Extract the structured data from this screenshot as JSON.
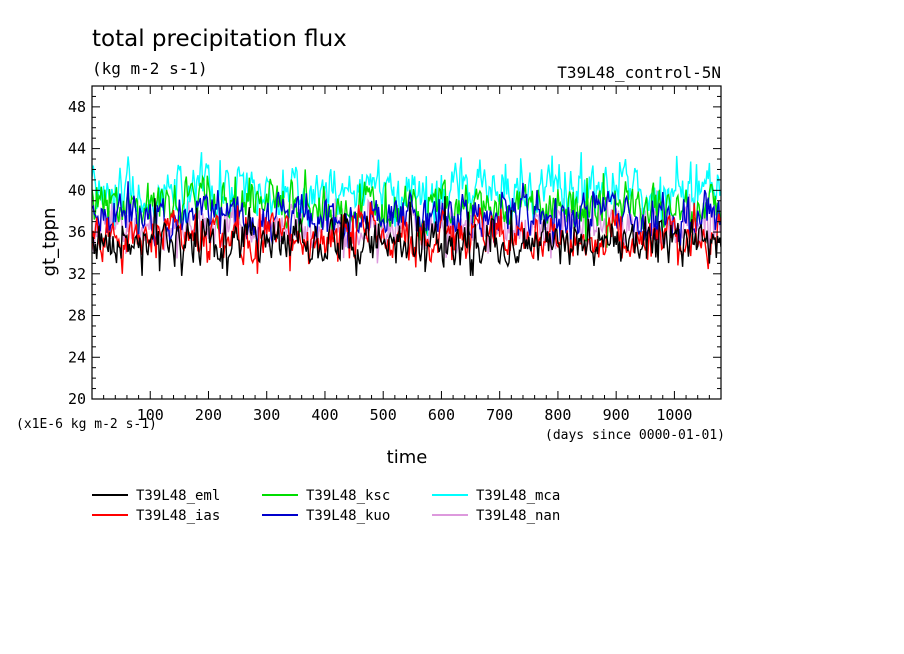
{
  "chart_data": {
    "type": "line",
    "title": "total precipitation flux",
    "units_label": "(kg m-2 s-1)",
    "run_label": "T39L48_control-5N",
    "ylabel": "gt_tppn",
    "xlabel": "time",
    "y_scale_note": "(x1E-6 kg m-2 s-1)",
    "x_unit_note": "(days since 0000-01-01)",
    "xlim": [
      0,
      1080
    ],
    "ylim": [
      20,
      50
    ],
    "xticks": [
      100,
      200,
      300,
      400,
      500,
      600,
      700,
      800,
      900,
      1000
    ],
    "yticks": [
      20,
      24,
      28,
      32,
      36,
      40,
      44,
      48
    ],
    "series": [
      {
        "name": "T39L48_eml",
        "color": "#000000",
        "mean": 35.2,
        "amp": 1.6,
        "min": 31.8,
        "max": 39.5
      },
      {
        "name": "T39L48_ias",
        "color": "#ff0000",
        "mean": 35.6,
        "amp": 1.5,
        "min": 32.0,
        "max": 39.5
      },
      {
        "name": "T39L48_ksc",
        "color": "#00dd00",
        "mean": 38.6,
        "amp": 1.6,
        "min": 34.5,
        "max": 42.5
      },
      {
        "name": "T39L48_kuo",
        "color": "#0000cc",
        "mean": 37.6,
        "amp": 1.5,
        "min": 33.8,
        "max": 41.5
      },
      {
        "name": "T39L48_mca",
        "color": "#00ffff",
        "mean": 39.8,
        "amp": 1.7,
        "min": 35.5,
        "max": 44.5
      },
      {
        "name": "T39L48_nan",
        "color": "#dd99dd",
        "mean": 36.5,
        "amp": 1.5,
        "min": 32.3,
        "max": 40.0
      }
    ]
  }
}
